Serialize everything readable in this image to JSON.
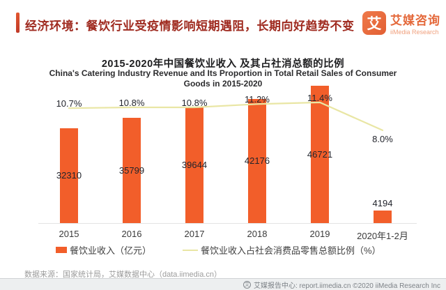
{
  "header": {
    "title": "经济环境：餐饮行业受疫情影响短期遇阻，长期向好趋势不变",
    "logo": {
      "glyph": "艾",
      "name_cn": "艾媒咨询",
      "name_en": "iiMedia Research"
    }
  },
  "chart_data": {
    "type": "bar",
    "title_cn": "2015-2020年中国餐饮业收入 及其占社消总额的比例",
    "title_en_line1": "China's  Catering Industry Revenue and Its Proportion in Total Retail Sales of Consumer",
    "title_en_line2": "Goods in 2015-2020",
    "categories": [
      "2015",
      "2016",
      "2017",
      "2018",
      "2019",
      "2020年1-2月"
    ],
    "series": [
      {
        "name": "餐饮业收入（亿元）",
        "type": "bar",
        "values": [
          32310,
          35799,
          39644,
          42176,
          46721,
          4194
        ],
        "color": "#f25e2a"
      },
      {
        "name": "餐饮业收入占社会消费品零售总额比例（%）",
        "type": "line",
        "values": [
          10.7,
          10.8,
          10.8,
          11.2,
          11.4,
          8.0
        ],
        "labels": [
          "10.7%",
          "10.8%",
          "10.8%",
          "11.2%",
          "11.4%",
          "8.0%"
        ],
        "color": "#e9e6a4"
      }
    ],
    "ylim": [
      0,
      50000
    ],
    "line_ylim": [
      0,
      12
    ],
    "grid": false,
    "legend_position": "bottom"
  },
  "footer": {
    "source": "数据来源：国家统计局，艾媒数据中心（data.iimedia.cn）",
    "report_center": "艾媒报告中心: report.iimedia.cn  ©2020  iiMedia Research Inc"
  },
  "colors": {
    "bar": "#f25e2a",
    "line": "#e9e6a4",
    "accent": "#e0532c",
    "header_text": "#9f2a1f"
  }
}
